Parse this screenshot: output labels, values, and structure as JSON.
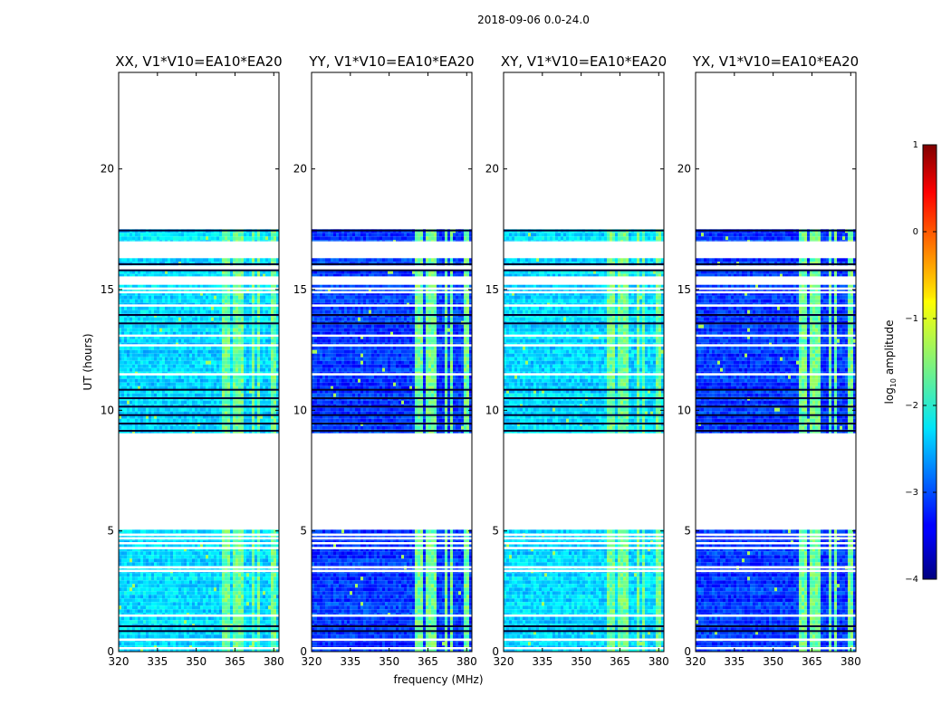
{
  "figure": {
    "suptitle": "2018-09-06 0.0-24.0",
    "xlabel": "frequency (MHz)",
    "ylabel": "UT (hours)"
  },
  "colorbar": {
    "label_prefix": "log",
    "label_sub": "10",
    "label_suffix": " amplitude",
    "range": [
      -4,
      1
    ],
    "ticks": [
      1,
      0,
      -1,
      -2,
      -3,
      -4
    ],
    "tick_labels": [
      "1",
      "0",
      "−1",
      "−2",
      "−3",
      "−4"
    ]
  },
  "chart_data": {
    "type": "heatmap",
    "x_range_mhz": [
      320,
      382
    ],
    "y_range_hours": [
      0,
      24
    ],
    "x_ticks": [
      320,
      335,
      350,
      365,
      380
    ],
    "y_ticks": [
      0,
      5,
      10,
      15,
      20
    ],
    "x_tick_labels": [
      "320",
      "335",
      "350",
      "365",
      "380"
    ],
    "y_tick_labels": [
      "0",
      "5",
      "10",
      "15",
      "20"
    ],
    "data_blocks_hours": [
      [
        0,
        5.05
      ],
      [
        9.05,
        15.2
      ],
      [
        15.55,
        15.8
      ],
      [
        16,
        16.3
      ],
      [
        17,
        17.5
      ]
    ],
    "rfi_band_mhz": [
      [
        360,
        363
      ],
      [
        364.5,
        368.5
      ],
      [
        371,
        372.5
      ],
      [
        373.5,
        375
      ],
      [
        378.5,
        381
      ]
    ],
    "panels": [
      {
        "title": "XX, V1*V10=EA10*EA20",
        "background_level": -2.3
      },
      {
        "title": "YY, V1*V10=EA10*EA20",
        "background_level": -3.1
      },
      {
        "title": "XY, V1*V10=EA10*EA20",
        "background_level": -2.3
      },
      {
        "title": "YX, V1*V10=EA10*EA20",
        "background_level": -3.1
      }
    ]
  }
}
